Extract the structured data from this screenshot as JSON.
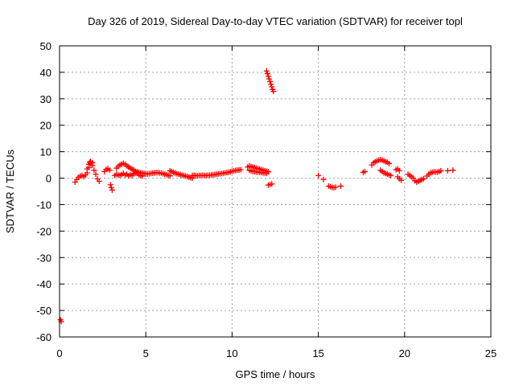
{
  "chart_data": {
    "type": "scatter",
    "title": "Day 326 of 2019, Sidereal Day-to-day VTEC variation (SDTVAR) for receiver topl",
    "xlabel": "GPS time / hours",
    "ylabel": "SDTVAR / TECUs",
    "xlim": [
      0,
      25
    ],
    "ylim": [
      -60,
      50
    ],
    "xticks": [
      0,
      5,
      10,
      15,
      20,
      25
    ],
    "xtick_labels": [
      "0",
      "5",
      "10",
      "15",
      "20",
      "25"
    ],
    "yticks": [
      -60,
      -50,
      -40,
      -30,
      -20,
      -10,
      0,
      10,
      20,
      30,
      40,
      50
    ],
    "ytick_labels": [
      "-60",
      "-50",
      "-40",
      "-30",
      "-20",
      "-10",
      "0",
      "10",
      "20",
      "30",
      "40",
      "50"
    ],
    "grid": true,
    "marker": "+",
    "color": "#ff0000",
    "series": [
      {
        "name": "SDTVAR",
        "points": [
          [
            0.05,
            -53.5
          ],
          [
            0.1,
            -54.2
          ],
          [
            0.9,
            -1.5
          ],
          [
            1.0,
            -0.5
          ],
          [
            1.1,
            0.3
          ],
          [
            1.2,
            0.8
          ],
          [
            1.3,
            1.0
          ],
          [
            1.4,
            0.6
          ],
          [
            1.5,
            1.2
          ],
          [
            1.6,
            3.5
          ],
          [
            1.7,
            5.2
          ],
          [
            1.75,
            6.0
          ],
          [
            1.8,
            5.5
          ],
          [
            1.9,
            4.8
          ],
          [
            2.0,
            3.0
          ],
          [
            2.1,
            1.5
          ],
          [
            2.2,
            -0.3
          ],
          [
            2.3,
            -1.2
          ],
          [
            1.6,
            2.0
          ],
          [
            1.7,
            4.0
          ],
          [
            1.8,
            6.3
          ],
          [
            1.9,
            5.8
          ],
          [
            2.6,
            2.5
          ],
          [
            2.7,
            3.3
          ],
          [
            2.8,
            3.6
          ],
          [
            2.9,
            3.0
          ],
          [
            2.95,
            -2.5
          ],
          [
            3.0,
            -3.6
          ],
          [
            3.05,
            -4.5
          ],
          [
            3.2,
            1.0
          ],
          [
            3.3,
            3.8
          ],
          [
            3.4,
            4.5
          ],
          [
            3.5,
            5.0
          ],
          [
            3.6,
            5.3
          ],
          [
            3.7,
            5.6
          ],
          [
            3.8,
            5.2
          ],
          [
            3.9,
            4.6
          ],
          [
            4.0,
            4.2
          ],
          [
            4.1,
            3.8
          ],
          [
            4.2,
            3.4
          ],
          [
            4.3,
            3.0
          ],
          [
            4.4,
            2.6
          ],
          [
            4.5,
            2.4
          ],
          [
            4.6,
            2.2
          ],
          [
            4.7,
            2.0
          ],
          [
            4.8,
            1.9
          ],
          [
            4.9,
            1.8
          ],
          [
            5.0,
            1.6
          ],
          [
            3.3,
            1.5
          ],
          [
            3.4,
            1.2
          ],
          [
            3.5,
            1.0
          ],
          [
            3.6,
            1.4
          ],
          [
            3.7,
            1.8
          ],
          [
            3.8,
            1.2
          ],
          [
            3.9,
            1.5
          ],
          [
            4.0,
            0.9
          ],
          [
            4.1,
            1.3
          ],
          [
            4.2,
            1.0
          ],
          [
            4.3,
            1.6
          ],
          [
            4.4,
            2.0
          ],
          [
            4.5,
            1.8
          ],
          [
            4.6,
            1.2
          ],
          [
            4.7,
            1.0
          ],
          [
            4.8,
            0.8
          ],
          [
            5.1,
            1.6
          ],
          [
            5.2,
            1.7
          ],
          [
            5.3,
            1.8
          ],
          [
            5.4,
            1.9
          ],
          [
            5.5,
            2.0
          ],
          [
            5.6,
            2.1
          ],
          [
            5.7,
            2.1
          ],
          [
            5.8,
            2.0
          ],
          [
            5.9,
            1.9
          ],
          [
            6.0,
            1.7
          ],
          [
            6.1,
            1.5
          ],
          [
            6.2,
            1.3
          ],
          [
            6.3,
            1.1
          ],
          [
            6.4,
            0.9
          ],
          [
            6.4,
            2.8
          ],
          [
            6.5,
            2.5
          ],
          [
            6.6,
            2.2
          ],
          [
            6.7,
            1.9
          ],
          [
            6.8,
            1.7
          ],
          [
            6.9,
            1.5
          ],
          [
            7.0,
            1.3
          ],
          [
            7.1,
            1.1
          ],
          [
            7.2,
            1.0
          ],
          [
            7.3,
            0.8
          ],
          [
            7.4,
            0.6
          ],
          [
            7.5,
            0.4
          ],
          [
            7.6,
            0.2
          ],
          [
            7.7,
            0.0
          ],
          [
            7.7,
            1.0
          ],
          [
            7.8,
            1.1
          ],
          [
            7.9,
            1.0
          ],
          [
            8.0,
            0.9
          ],
          [
            8.1,
            1.0
          ],
          [
            8.2,
            1.0
          ],
          [
            8.3,
            1.1
          ],
          [
            8.4,
            1.0
          ],
          [
            8.5,
            1.0
          ],
          [
            8.6,
            1.1
          ],
          [
            8.7,
            1.1
          ],
          [
            8.8,
            1.2
          ],
          [
            8.9,
            1.3
          ],
          [
            9.0,
            1.4
          ],
          [
            9.1,
            1.5
          ],
          [
            9.2,
            1.6
          ],
          [
            9.3,
            1.7
          ],
          [
            9.4,
            1.8
          ],
          [
            9.5,
            1.9
          ],
          [
            9.6,
            2.0
          ],
          [
            9.7,
            2.1
          ],
          [
            9.8,
            2.2
          ],
          [
            9.9,
            2.4
          ],
          [
            10.0,
            2.6
          ],
          [
            10.1,
            2.8
          ],
          [
            10.2,
            2.9
          ],
          [
            10.3,
            3.0
          ],
          [
            10.4,
            3.1
          ],
          [
            10.5,
            3.2
          ],
          [
            10.9,
            4.2
          ],
          [
            11.0,
            4.6
          ],
          [
            11.1,
            4.4
          ],
          [
            11.2,
            4.2
          ],
          [
            11.3,
            4.0
          ],
          [
            11.4,
            3.8
          ],
          [
            11.5,
            3.6
          ],
          [
            11.6,
            3.4
          ],
          [
            11.7,
            3.2
          ],
          [
            11.8,
            3.0
          ],
          [
            11.9,
            2.8
          ],
          [
            12.0,
            2.6
          ],
          [
            12.1,
            2.4
          ],
          [
            11.0,
            3.0
          ],
          [
            11.1,
            2.8
          ],
          [
            11.2,
            2.6
          ],
          [
            11.3,
            2.5
          ],
          [
            11.4,
            2.4
          ],
          [
            11.5,
            2.3
          ],
          [
            11.6,
            2.2
          ],
          [
            11.7,
            2.1
          ],
          [
            11.8,
            2.0
          ],
          [
            11.9,
            1.9
          ],
          [
            12.0,
            1.8
          ],
          [
            12.0,
            40.5
          ],
          [
            12.05,
            39.5
          ],
          [
            12.1,
            38.5
          ],
          [
            12.15,
            37.5
          ],
          [
            12.2,
            36.5
          ],
          [
            12.25,
            35.5
          ],
          [
            12.3,
            34.5
          ],
          [
            12.35,
            33.5
          ],
          [
            12.4,
            32.8
          ],
          [
            12.1,
            -2.6
          ],
          [
            12.2,
            -2.4
          ],
          [
            12.3,
            -2.2
          ],
          [
            15.0,
            1.0
          ],
          [
            15.3,
            -0.5
          ],
          [
            15.6,
            -3.0
          ],
          [
            15.7,
            -3.2
          ],
          [
            15.8,
            -3.5
          ],
          [
            15.9,
            -3.6
          ],
          [
            16.0,
            -3.4
          ],
          [
            16.3,
            -3.0
          ],
          [
            17.6,
            2.2
          ],
          [
            17.7,
            2.5
          ],
          [
            18.1,
            5.0
          ],
          [
            18.2,
            5.8
          ],
          [
            18.3,
            6.2
          ],
          [
            18.4,
            6.5
          ],
          [
            18.5,
            6.8
          ],
          [
            18.6,
            7.0
          ],
          [
            18.7,
            6.8
          ],
          [
            18.8,
            6.5
          ],
          [
            18.9,
            6.2
          ],
          [
            19.0,
            6.0
          ],
          [
            19.1,
            5.5
          ],
          [
            18.6,
            3.0
          ],
          [
            18.7,
            2.5
          ],
          [
            18.8,
            2.0
          ],
          [
            18.9,
            1.8
          ],
          [
            19.0,
            1.5
          ],
          [
            19.1,
            1.2
          ],
          [
            19.2,
            1.0
          ],
          [
            19.5,
            3.2
          ],
          [
            19.6,
            3.5
          ],
          [
            19.7,
            2.8
          ],
          [
            19.6,
            0.5
          ],
          [
            19.7,
            -0.2
          ],
          [
            19.8,
            -0.8
          ],
          [
            20.2,
            1.5
          ],
          [
            20.3,
            1.0
          ],
          [
            20.4,
            0.5
          ],
          [
            20.5,
            0.0
          ],
          [
            20.6,
            -1.0
          ],
          [
            20.7,
            -1.5
          ],
          [
            20.8,
            -1.2
          ],
          [
            20.9,
            -0.8
          ],
          [
            21.0,
            -0.5
          ],
          [
            21.1,
            -0.2
          ],
          [
            21.3,
            0.8
          ],
          [
            21.4,
            1.5
          ],
          [
            21.5,
            2.0
          ],
          [
            21.6,
            2.2
          ],
          [
            21.7,
            2.4
          ],
          [
            21.8,
            2.3
          ],
          [
            21.9,
            2.2
          ],
          [
            22.0,
            2.5
          ],
          [
            22.1,
            2.8
          ],
          [
            22.5,
            2.8
          ],
          [
            22.8,
            3.0
          ]
        ]
      }
    ]
  }
}
